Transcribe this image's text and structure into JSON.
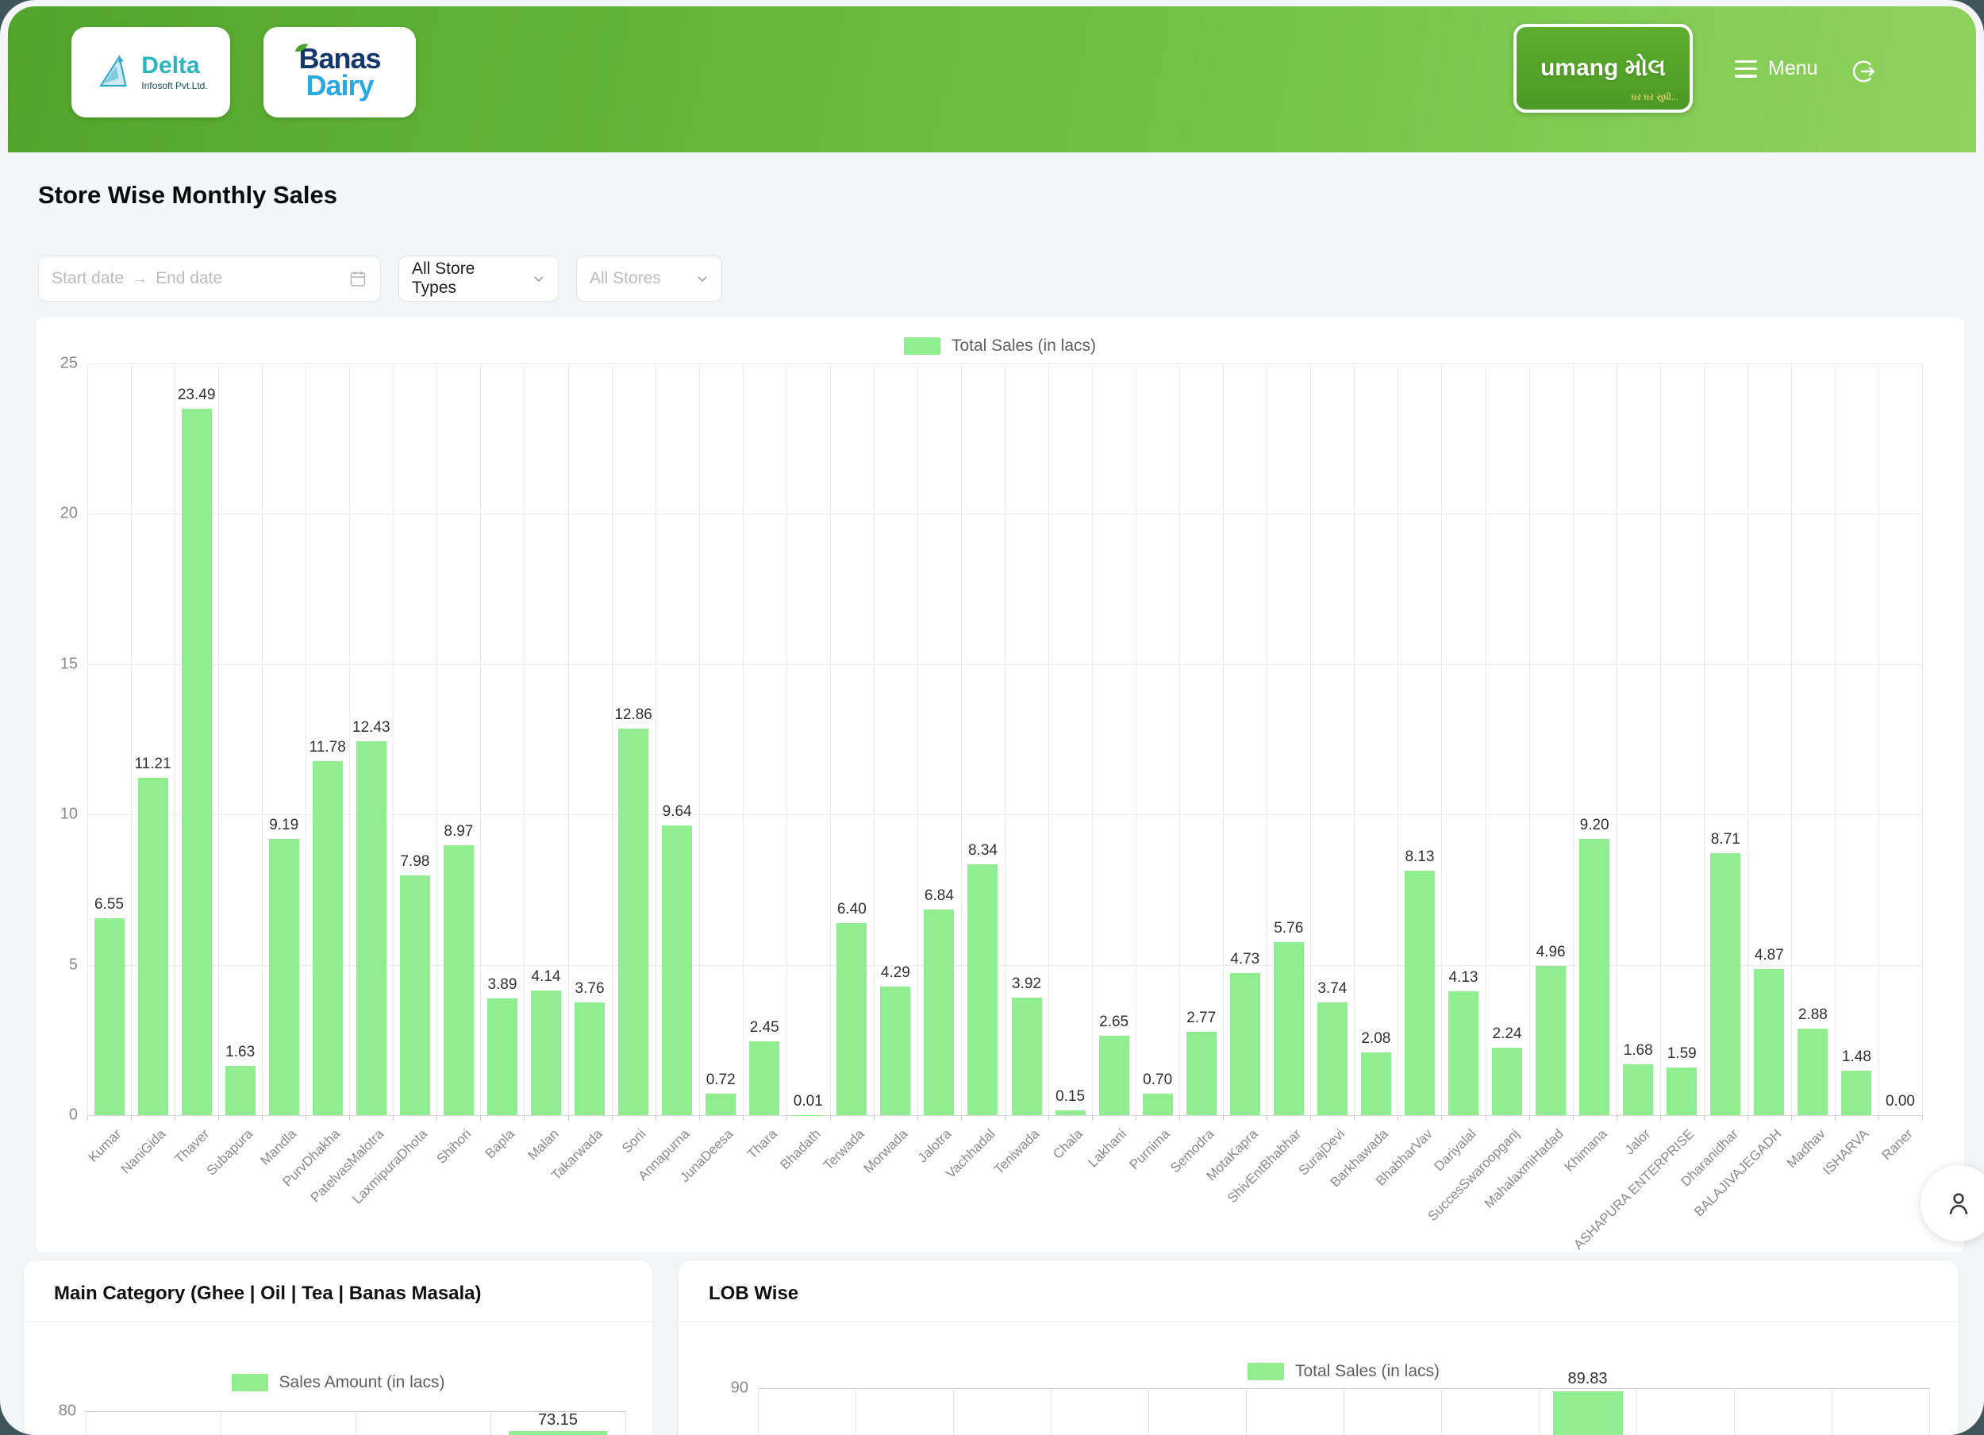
{
  "header": {
    "menu_label": "Menu",
    "logos": {
      "delta": {
        "name": "Delta",
        "subtitle": "Infosoft Pvt.Ltd."
      },
      "banas": {
        "line1": "Banas",
        "line2": "Dairy"
      },
      "umang": {
        "text": "umang મોલ",
        "tagline": "ઘર ઘર સુધી..."
      }
    }
  },
  "page_title": "Store Wise Monthly Sales",
  "filters": {
    "date_range": {
      "start_placeholder": "Start date",
      "end_placeholder": "End date"
    },
    "store_type_select": {
      "value": "All Store Types"
    },
    "store_select": {
      "placeholder": "All Stores"
    }
  },
  "colors": {
    "bar_green": "#90ee90",
    "header_gradient_start": "#53a42c",
    "header_gradient_end": "#8fd35f",
    "outer_background": "#40545c",
    "page_background": "#f4f5f6"
  },
  "chart_data": [
    {
      "id": "store-wise-monthly-sales",
      "type": "bar",
      "legend": "Total Sales (in lacs)",
      "legend_position": "top",
      "grid": true,
      "ylim": [
        0,
        25
      ],
      "yticks": [
        0,
        5,
        10,
        15,
        20,
        25
      ],
      "categories": [
        "Kumar",
        "NaniGida",
        "Thaver",
        "Subapura",
        "Mandla",
        "PurvDhakha",
        "PatelvasMalotra",
        "LaxmipuraDhota",
        "Shihori",
        "Bapla",
        "Malan",
        "Takarwada",
        "Soni",
        "Annapurna",
        "JunaDeesa",
        "Thara",
        "Bhadath",
        "Terwada",
        "Morwada",
        "Jalotra",
        "Vachhadal",
        "Teniwada",
        "Chala",
        "Lakhani",
        "Purnima",
        "Semodra",
        "MotaKapra",
        "ShivEntBhabhar",
        "SurajDevi",
        "Barkhawada",
        "BhabharVav",
        "Dariyalal",
        "SuccesSwaroopganj",
        "MahalaxmiHadad",
        "Khimana",
        "Jalor",
        "ASHAPURA ENTERPRISE",
        "Dharanidhar",
        "BALAJIVAJEGADH",
        "Madhav",
        "ISHARVA",
        "Raner"
      ],
      "values": [
        6.55,
        11.21,
        23.49,
        1.63,
        9.19,
        11.78,
        12.43,
        7.98,
        8.97,
        3.89,
        4.14,
        3.76,
        12.86,
        9.64,
        0.72,
        2.45,
        0.01,
        6.4,
        4.29,
        6.84,
        8.34,
        3.92,
        0.15,
        2.65,
        0.7,
        2.77,
        4.73,
        5.76,
        3.74,
        2.08,
        8.13,
        4.13,
        2.24,
        4.96,
        9.2,
        1.68,
        1.59,
        8.71,
        4.87,
        2.88,
        1.48,
        0.0
      ]
    },
    {
      "id": "main-category",
      "type": "bar",
      "title": "Main Category (Ghee | Oil | Tea | Banas Masala)",
      "legend": "Sales Amount (in lacs)",
      "legend_position": "top",
      "top_visible_ytick": 80,
      "num_columns": 4,
      "bars": [
        {
          "column_index": 3,
          "value": 73.15
        }
      ]
    },
    {
      "id": "lob-wise",
      "type": "bar",
      "title": "LOB Wise",
      "legend": "Total Sales (in lacs)",
      "legend_position": "top",
      "top_visible_ytick": 90,
      "num_columns": 12,
      "bars": [
        {
          "column_index": 8,
          "value": 89.83
        }
      ]
    }
  ]
}
